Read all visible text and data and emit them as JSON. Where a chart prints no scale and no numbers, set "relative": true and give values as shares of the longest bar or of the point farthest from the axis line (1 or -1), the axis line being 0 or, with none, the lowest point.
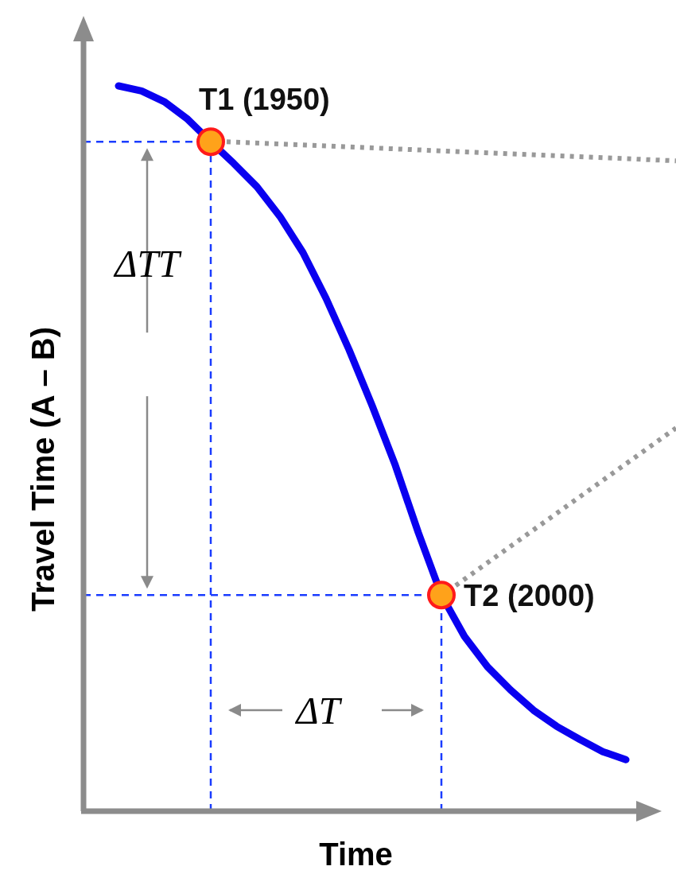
{
  "chart_data": {
    "type": "line",
    "relative": true,
    "xlabel": "Time",
    "ylabel": "Travel Time (A – B)",
    "categories": [
      null,
      null,
      null,
      null,
      null,
      null,
      null,
      null,
      null,
      null,
      null,
      null,
      null,
      null,
      null,
      null,
      null,
      null,
      null,
      null,
      null,
      null,
      null
    ],
    "series": [
      {
        "color": "#0a00f0",
        "values": [
          1.0,
          0.993,
          0.978,
          0.954,
          0.923,
          0.893,
          0.861,
          0.82,
          0.77,
          0.707,
          0.636,
          0.559,
          0.477,
          0.384,
          0.298,
          0.241,
          0.199,
          0.167,
          0.139,
          0.117,
          0.099,
          0.082,
          0.071
        ]
      }
    ],
    "ref_lines": [
      {
        "axis": "y",
        "value": 0.923,
        "color": "#1a3cff",
        "line_style": "dashed"
      },
      {
        "axis": "y",
        "value": 0.298,
        "color": "#1a3cff",
        "line_style": "dashed"
      }
    ],
    "annotations": [
      "T1 (1950)",
      "T2 (2000)",
      "ΔTT",
      "ΔT"
    ]
  }
}
